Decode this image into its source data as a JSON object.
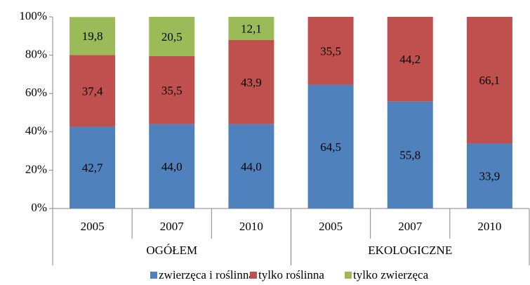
{
  "chart_data": {
    "type": "stacked_bar",
    "groups": [
      {
        "name": "OGÓŁEM",
        "categories": [
          "2005",
          "2007",
          "2010"
        ]
      },
      {
        "name": "EKOLOGICZNE",
        "categories": [
          "2005",
          "2007",
          "2010"
        ]
      }
    ],
    "series": [
      {
        "name": "zwierzęca i roślinna",
        "color": "#4f81bd",
        "values": [
          42.7,
          44.0,
          44.0,
          64.5,
          55.8,
          33.9
        ],
        "value_labels": [
          "42,7",
          "44,0",
          "44,0",
          "64,5",
          "55,8",
          "33,9"
        ]
      },
      {
        "name": "tylko roślinna",
        "color": "#c0504d",
        "values": [
          37.4,
          35.5,
          43.9,
          35.5,
          44.2,
          66.1
        ],
        "value_labels": [
          "37,4",
          "35,5",
          "43,9",
          "35,5",
          "44,2",
          "66,1"
        ]
      },
      {
        "name": "tylko zwierzęca",
        "color": "#9bbb59",
        "values": [
          19.8,
          20.5,
          12.1,
          null,
          null,
          null
        ],
        "value_labels": [
          "19,8",
          "20,5",
          "12,1",
          null,
          null,
          null
        ]
      }
    ],
    "ylim": [
      0,
      100
    ],
    "yticks": [
      {
        "value": 0,
        "label": "0%"
      },
      {
        "value": 20,
        "label": "20%"
      },
      {
        "value": 40,
        "label": "40%"
      },
      {
        "value": 60,
        "label": "60%"
      },
      {
        "value": 80,
        "label": "80%"
      },
      {
        "value": 100,
        "label": "100%"
      }
    ],
    "legend": "bottom"
  }
}
